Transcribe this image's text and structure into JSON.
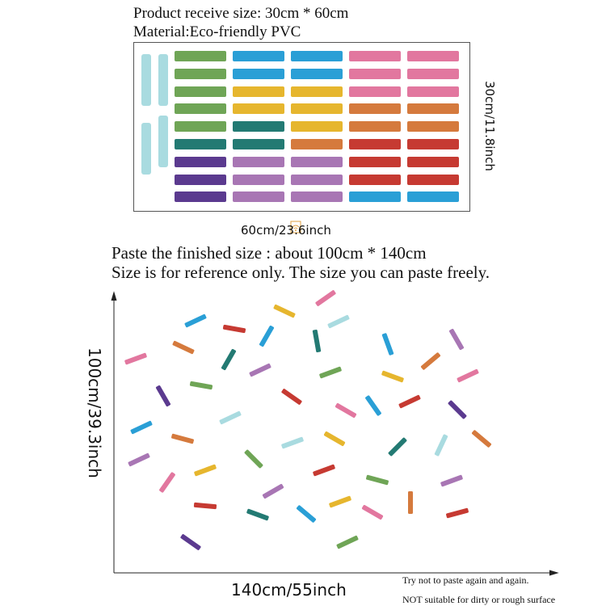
{
  "colors": {
    "green": "#6fa556",
    "blue": "#2a9fd6",
    "yellow": "#e6b62e",
    "pink": "#e2779f",
    "orange": "#d57a3d",
    "teal": "#237a73",
    "red": "#c63a32",
    "purple": "#5b3a8f",
    "lavender": "#a876b4",
    "light_blue": "#a9dbe0"
  },
  "product": {
    "receive_size": "Product receive size: 30cm * 60cm",
    "material": "Material:Eco-friendly PVC",
    "height_label": "30cm/11.8inch",
    "width_label": "60cm/23.6inch"
  },
  "sheet_columns": [
    [
      "green",
      "green",
      "green",
      "green",
      "green",
      "teal",
      "purple",
      "purple",
      "purple"
    ],
    [
      "blue",
      "blue",
      "yellow",
      "yellow",
      "teal",
      "teal",
      "lavender",
      "lavender",
      "lavender"
    ],
    [
      "blue",
      "blue",
      "yellow",
      "yellow",
      "yellow",
      "orange",
      "lavender",
      "lavender",
      "lavender"
    ],
    [
      "pink",
      "pink",
      "pink",
      "orange",
      "orange",
      "red",
      "red",
      "red",
      "blue"
    ],
    [
      "pink",
      "pink",
      "pink",
      "orange",
      "orange",
      "red",
      "red",
      "red",
      "blue"
    ]
  ],
  "sheet_vertical_strips": [
    "light_blue",
    "light_blue",
    "light_blue",
    "light_blue"
  ],
  "paste": {
    "finished_size": "Paste the finished size : about 100cm * 140cm",
    "reference_note": "Size is for reference only. The size you can paste freely.",
    "height_label": "100cm/39.3inch",
    "width_label": "140cm/55inch"
  },
  "notes": {
    "no_repaste": "Try not to paste again and again.",
    "surface": "NOT suitable for dirty or rough surface"
  },
  "confetti": [
    {
      "color": "pink",
      "angle": -35
    },
    {
      "color": "yellow",
      "angle": 25
    },
    {
      "color": "light_blue",
      "angle": -25
    },
    {
      "color": "blue",
      "angle": -25
    },
    {
      "color": "red",
      "angle": 10
    },
    {
      "color": "blue",
      "angle": -60
    },
    {
      "color": "teal",
      "angle": 80
    },
    {
      "color": "blue",
      "angle": 70
    },
    {
      "color": "lavender",
      "angle": 60
    },
    {
      "color": "pink",
      "angle": -20
    },
    {
      "color": "orange",
      "angle": 25
    },
    {
      "color": "teal",
      "angle": -60
    },
    {
      "color": "orange",
      "angle": -40
    },
    {
      "color": "lavender",
      "angle": -25
    },
    {
      "color": "green",
      "angle": -20
    },
    {
      "color": "yellow",
      "angle": 20
    },
    {
      "color": "pink",
      "angle": -25
    },
    {
      "color": "green",
      "angle": 10
    },
    {
      "color": "purple",
      "angle": 60
    },
    {
      "color": "red",
      "angle": 35
    },
    {
      "color": "pink",
      "angle": 30
    },
    {
      "color": "blue",
      "angle": 55
    },
    {
      "color": "red",
      "angle": -25
    },
    {
      "color": "purple",
      "angle": 45
    },
    {
      "color": "light_blue",
      "angle": -25
    },
    {
      "color": "blue",
      "angle": -25
    },
    {
      "color": "orange",
      "angle": 15
    },
    {
      "color": "light_blue",
      "angle": -20
    },
    {
      "color": "yellow",
      "angle": 30
    },
    {
      "color": "teal",
      "angle": -45
    },
    {
      "color": "light_blue",
      "angle": -65
    },
    {
      "color": "orange",
      "angle": 40
    },
    {
      "color": "lavender",
      "angle": -25
    },
    {
      "color": "green",
      "angle": 45
    },
    {
      "color": "red",
      "angle": -20
    },
    {
      "color": "pink",
      "angle": -55
    },
    {
      "color": "yellow",
      "angle": -20
    },
    {
      "color": "green",
      "angle": 15
    },
    {
      "color": "lavender",
      "angle": -20
    },
    {
      "color": "lavender",
      "angle": -30
    },
    {
      "color": "red",
      "angle": 5
    },
    {
      "color": "teal",
      "angle": 20
    },
    {
      "color": "blue",
      "angle": 40
    },
    {
      "color": "yellow",
      "angle": -20
    },
    {
      "color": "pink",
      "angle": 30
    },
    {
      "color": "orange",
      "angle": 90
    },
    {
      "color": "red",
      "angle": -15
    },
    {
      "color": "purple",
      "angle": 35
    },
    {
      "color": "green",
      "angle": -25
    }
  ]
}
